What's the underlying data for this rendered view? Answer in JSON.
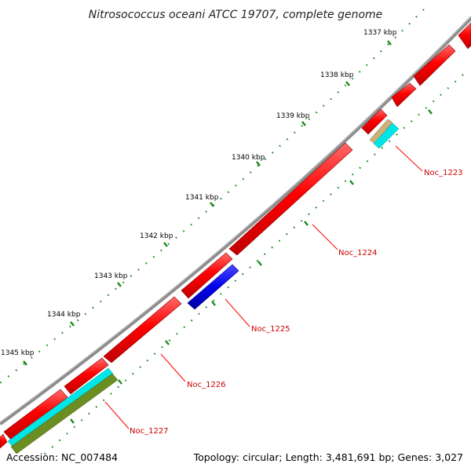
{
  "title": "Nitrosococcus oceani ATCC 19707, complete genome",
  "ticks": [
    "1337 kbp",
    "1338 kbp",
    "1339 kbp",
    "1340 kbp",
    "1341 kbp",
    "1342 kbp",
    "1343 kbp",
    "1344 kbp",
    "1345 kbp"
  ],
  "gene_labels": [
    "Noc_1223",
    "Noc_1224",
    "Noc_1225",
    "Noc_1226",
    "Noc_1227"
  ],
  "footer": {
    "accession": "Accession: NC_007484",
    "topology": "Topology: circular; Length: 3,481,691 bp; Genes: 3,027"
  },
  "colors": {
    "backbone": "#8c8c8c",
    "forward_gene": "#ff0000",
    "reverse_gene": "#0000ee",
    "rna_cyan": "#00e5e5",
    "rna_olive": "#6b8e23",
    "rna_tan": "#c8b27a",
    "tick_dots": "#1a8a1a",
    "label_line": "#ff0000"
  }
}
